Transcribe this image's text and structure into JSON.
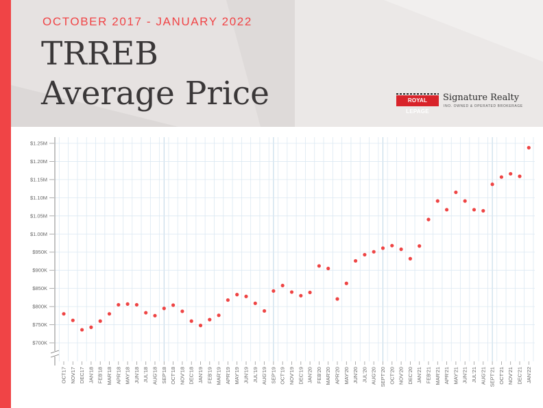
{
  "header": {
    "date_range": "OCTOBER 2017 - JANUARY 2022",
    "title_line1": "TRREB",
    "title_line2": "Average Price",
    "brand_logo": "ROYAL LEPAGE",
    "brand_name": "Signature Realty",
    "brand_tagline": "INO. OWNED & OPERATED BROKERAGE"
  },
  "colors": {
    "accent": "#f04446",
    "point": "#ee4444",
    "grid": "#dbe8f2",
    "grid_major": "#bcd5e6",
    "header_bg": "#e6e2e1"
  },
  "chart_data": {
    "type": "scatter",
    "categories": [
      "OCT17",
      "NOV17",
      "DEC17",
      "JAN'18",
      "FEB'18",
      "MAR'18",
      "APR'18",
      "MAY'18",
      "JUN'18",
      "JUL'18",
      "AUG'18",
      "SEP'18",
      "OCT'18",
      "NOV'18",
      "DEC'18",
      "JAN'19",
      "FEB'19",
      "MAR'19",
      "APR'19",
      "MAY'19",
      "JUN'19",
      "JUL'19",
      "AUG'19",
      "SEP'19",
      "OCT'19",
      "NOV'19",
      "DEC'19",
      "JAN'20",
      "FEB'20",
      "MAR'20",
      "APR'20",
      "MAY'20",
      "JUN'20",
      "JUL'20",
      "AUG'20",
      "SEPT'20",
      "OCT'20",
      "NOV'20",
      "DEC'20",
      "JAN'21",
      "FEB'21",
      "MAR'21",
      "APR'21",
      "MAY'21",
      "JUN'21",
      "JUL'21",
      "AUG'21",
      "SEPT'21",
      "OCT'21",
      "NOV'21",
      "DEC'21",
      "JAN'22"
    ],
    "values": [
      780000,
      762000,
      736000,
      743000,
      760000,
      780000,
      805000,
      807000,
      805000,
      783000,
      775000,
      795000,
      804000,
      787000,
      760000,
      748000,
      764000,
      776000,
      818000,
      833000,
      828000,
      809000,
      788000,
      843000,
      858000,
      840000,
      830000,
      839000,
      912000,
      905000,
      821000,
      864000,
      926000,
      943000,
      951000,
      961000,
      968000,
      958000,
      932000,
      967000,
      1040000,
      1091000,
      1067000,
      1115000,
      1091000,
      1067000,
      1064000,
      1137000,
      1157000,
      1166000,
      1159000,
      1238000
    ],
    "y_ticks": [
      700000,
      750000,
      800000,
      850000,
      900000,
      950000,
      1000000,
      1050000,
      1100000,
      1150000,
      1200000,
      1250000
    ],
    "y_tick_labels": [
      "$700K",
      "$750K",
      "$800K",
      "$850K",
      "$900K",
      "$950K",
      "$1.00M",
      "$1.05M",
      "$1.10M",
      "$1.15M",
      "$1.20M",
      "$1.25M"
    ],
    "ylim": [
      700000,
      1250000
    ],
    "xlabel": "",
    "ylabel": "",
    "grid": true,
    "axis_break": true
  }
}
